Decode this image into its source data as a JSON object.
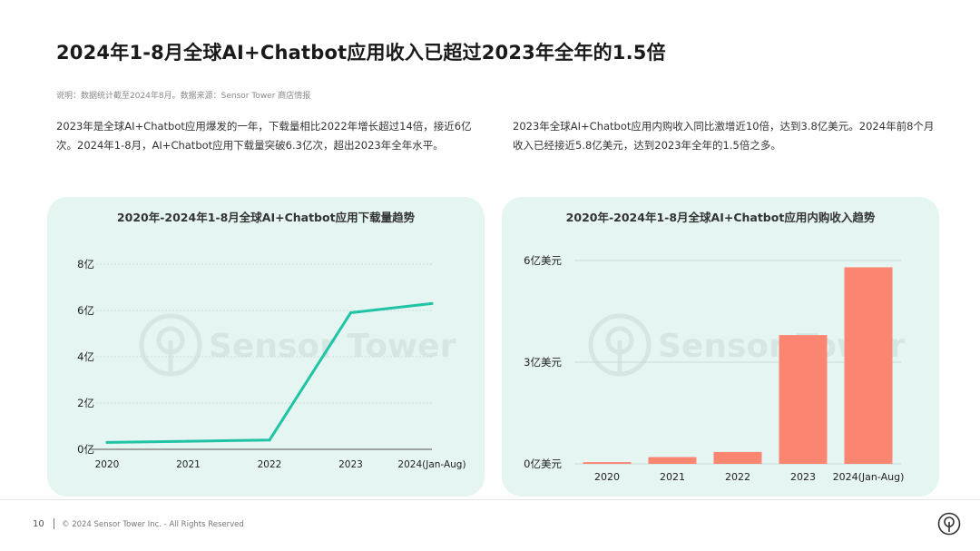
{
  "page": {
    "title": "2024年1-8月全球AI+Chatbot应用收入已超过2023年全年的1.5倍",
    "note": "说明：数据统计截至2024年8月。数据来源：Sensor Tower 商店情报",
    "para_left": "2023年是全球AI+Chatbot应用爆发的一年，下载量相比2022年增长超过14倍，接近6亿次。2024年1-8月，AI+Chatbot应用下载量突破6.3亿次，超出2023年全年水平。",
    "para_right": "2023年全球AI+Chatbot应用内购收入同比激增近10倍，达到3.8亿美元。2024年前8个月收入已经接近5.8亿美元，达到2023年全年的1.5倍之多。",
    "watermark": "Sensor Tower"
  },
  "footer": {
    "page_number": "10",
    "copyright": "© 2024 Sensor Tower Inc. - All Rights Reserved"
  },
  "chart_data": [
    {
      "type": "line",
      "title": "2020年-2024年1-8月全球AI+Chatbot应用下载量趋势",
      "categories": [
        "2020",
        "2021",
        "2022",
        "2023",
        "2024(Jan-Aug)"
      ],
      "series": [
        {
          "values": [
            0.3,
            0.35,
            0.4,
            5.9,
            6.3
          ]
        }
      ],
      "y_ticks": [
        "0亿",
        "2亿",
        "4亿",
        "6亿",
        "8亿"
      ],
      "ylim": [
        0,
        8
      ],
      "grid": true,
      "color": "#1ec4a4"
    },
    {
      "type": "bar",
      "title": "2020年-2024年1-8月全球AI+Chatbot应用内购收入趋势",
      "categories": [
        "2020",
        "2021",
        "2022",
        "2023",
        "2024(Jan-Aug)"
      ],
      "values": [
        0.05,
        0.2,
        0.35,
        3.8,
        5.8
      ],
      "y_ticks": [
        "0亿美元",
        "3亿美元",
        "6亿美元"
      ],
      "ylim": [
        0,
        6
      ],
      "grid": true,
      "color": "#fa8571"
    }
  ]
}
